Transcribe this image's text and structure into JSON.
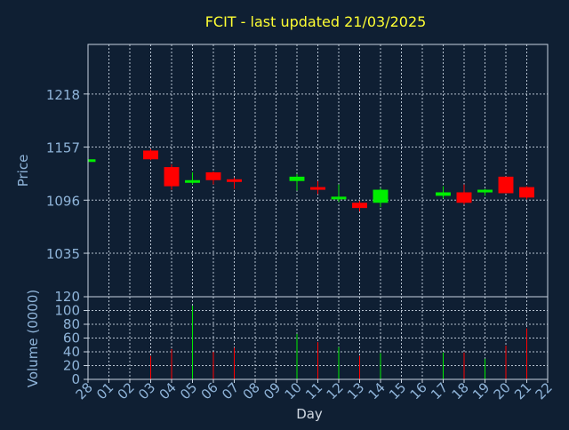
{
  "title": "FCIT - last updated 21/03/2025",
  "colors": {
    "background": "#0f1f33",
    "plot_border": "#c8d3e0",
    "grid": "#c8d3e0",
    "title": "#ffff33",
    "axis_text": "#8fb4d9",
    "up": "#00ee00",
    "down": "#ff0000"
  },
  "chart_data": [
    {
      "type": "candlestick",
      "ylabel": "Price",
      "ylim": [
        985,
        1275
      ],
      "yticks": [
        "1218",
        "1157",
        "1096",
        "1035"
      ],
      "ytick_values": [
        1218,
        1157,
        1096,
        1035
      ],
      "grid": true,
      "x_labels": [
        "28",
        "01",
        "02",
        "03",
        "04",
        "05",
        "06",
        "07",
        "08",
        "09",
        "10",
        "11",
        "12",
        "13",
        "14",
        "15",
        "16",
        "17",
        "18",
        "19",
        "20",
        "21",
        "22"
      ],
      "candles": [
        {
          "day": "28",
          "open": 1143,
          "close": 1143,
          "high": 1144,
          "low": 1142
        },
        {
          "day": "03",
          "open": 1153,
          "close": 1143,
          "high": 1155,
          "low": 1142
        },
        {
          "day": "04",
          "open": 1134,
          "close": 1112,
          "high": 1137,
          "low": 1108
        },
        {
          "day": "05",
          "open": 1116,
          "close": 1119,
          "high": 1128,
          "low": 1114
        },
        {
          "day": "06",
          "open": 1128,
          "close": 1119,
          "high": 1129,
          "low": 1114
        },
        {
          "day": "07",
          "open": 1120,
          "close": 1117,
          "high": 1122,
          "low": 1109
        },
        {
          "day": "10",
          "open": 1118,
          "close": 1123,
          "high": 1126,
          "low": 1107
        },
        {
          "day": "11",
          "open": 1111,
          "close": 1109,
          "high": 1118,
          "low": 1103
        },
        {
          "day": "12",
          "open": 1098,
          "close": 1100,
          "high": 1114,
          "low": 1094
        },
        {
          "day": "13",
          "open": 1093,
          "close": 1087,
          "high": 1095,
          "low": 1083
        },
        {
          "day": "14",
          "open": 1093,
          "close": 1108,
          "high": 1110,
          "low": 1088
        },
        {
          "day": "17",
          "open": 1101,
          "close": 1105,
          "high": 1112,
          "low": 1098
        },
        {
          "day": "18",
          "open": 1105,
          "close": 1093,
          "high": 1114,
          "low": 1091
        },
        {
          "day": "19",
          "open": 1106,
          "close": 1108,
          "high": 1109,
          "low": 1101
        },
        {
          "day": "20",
          "open": 1123,
          "close": 1104,
          "high": 1123,
          "low": 1104
        },
        {
          "day": "21",
          "open": 1111,
          "close": 1099,
          "high": 1112,
          "low": 1097
        }
      ]
    },
    {
      "type": "bar",
      "ylabel": "Volume (0000)",
      "xlabel": "Day",
      "ylim": [
        0,
        120
      ],
      "yticks": [
        "120",
        "100",
        "80",
        "60",
        "40",
        "20",
        "0"
      ],
      "ytick_values": [
        120,
        100,
        80,
        60,
        40,
        20,
        0
      ],
      "grid": true,
      "bars": [
        {
          "day": "03",
          "value": 34,
          "direction": "down"
        },
        {
          "day": "04",
          "value": 44,
          "direction": "down"
        },
        {
          "day": "05",
          "value": 107,
          "direction": "up"
        },
        {
          "day": "06",
          "value": 40,
          "direction": "down"
        },
        {
          "day": "07",
          "value": 46,
          "direction": "down"
        },
        {
          "day": "10",
          "value": 66,
          "direction": "up"
        },
        {
          "day": "11",
          "value": 54,
          "direction": "down"
        },
        {
          "day": "12",
          "value": 47,
          "direction": "up"
        },
        {
          "day": "13",
          "value": 34,
          "direction": "down"
        },
        {
          "day": "14",
          "value": 38,
          "direction": "up"
        },
        {
          "day": "17",
          "value": 39,
          "direction": "up"
        },
        {
          "day": "18",
          "value": 39,
          "direction": "down"
        },
        {
          "day": "19",
          "value": 30,
          "direction": "up"
        },
        {
          "day": "20",
          "value": 49,
          "direction": "down"
        },
        {
          "day": "21",
          "value": 74,
          "direction": "down"
        }
      ]
    }
  ]
}
